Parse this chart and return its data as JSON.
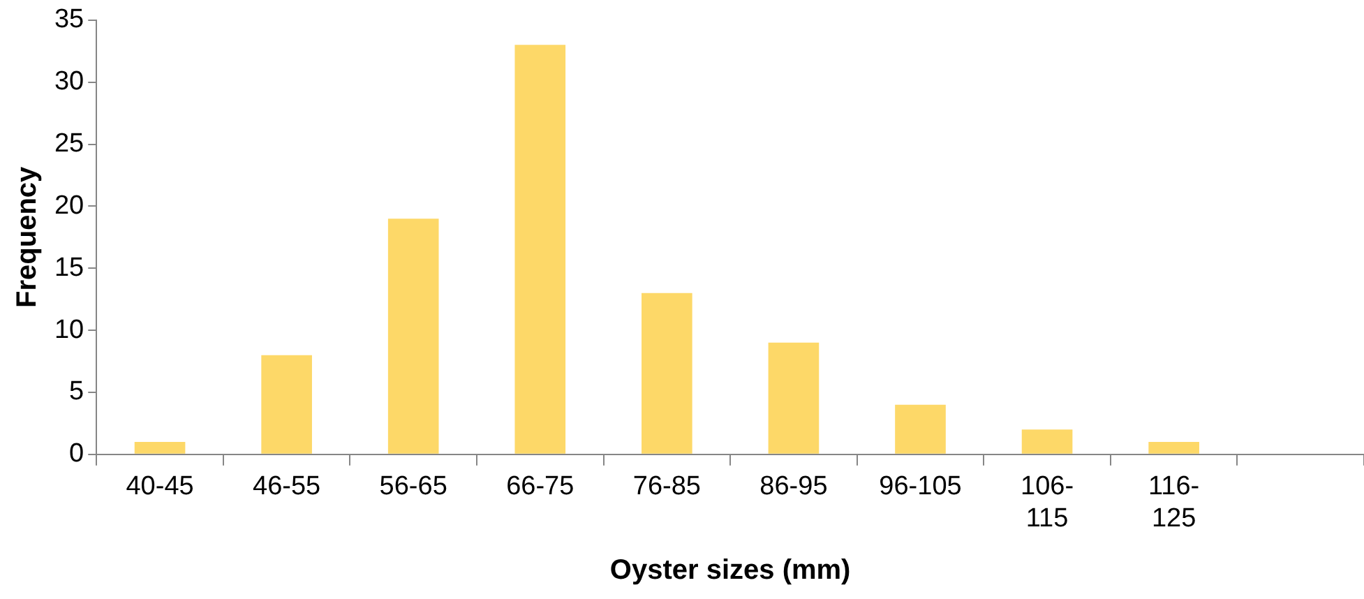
{
  "chart_data": {
    "type": "bar",
    "xlabel": "Oyster sizes (mm)",
    "ylabel": "Frequency",
    "categories": [
      "40-45",
      "46-55",
      "56-65",
      "66-75",
      "76-85",
      "86-95",
      "96-105",
      "106-115",
      "116-125",
      null
    ],
    "values": [
      1,
      8,
      19,
      33,
      13,
      9,
      4,
      2,
      1,
      null
    ],
    "color": "#fdd868",
    "ylim": [
      0,
      35
    ],
    "yticks": [
      0,
      5,
      10,
      15,
      20,
      25,
      30,
      35
    ],
    "grid": false,
    "legend": false
  }
}
